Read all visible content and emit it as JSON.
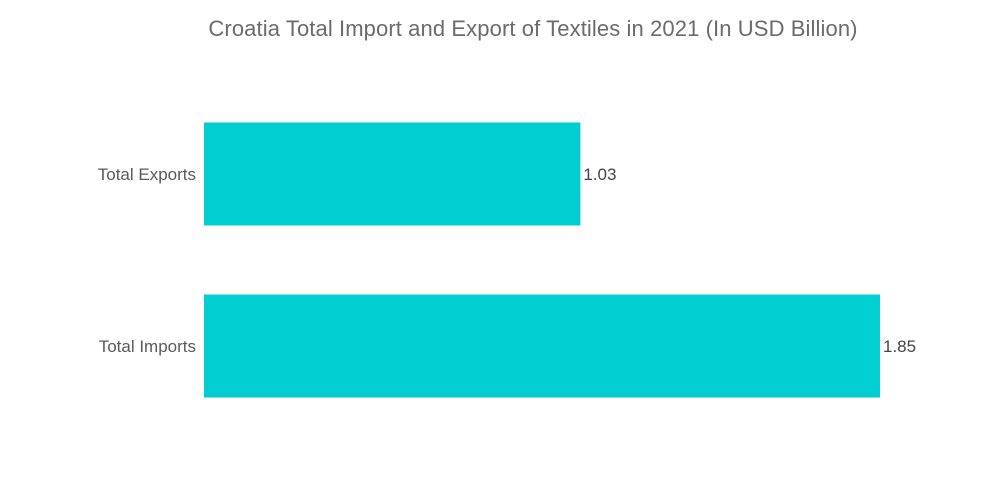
{
  "chart_data": {
    "type": "bar",
    "orientation": "horizontal",
    "title": "Croatia Total Import and Export of Textiles in 2021 (In USD Billion)",
    "categories": [
      "Total Exports",
      "Total Imports"
    ],
    "values": [
      1.03,
      1.85
    ],
    "value_labels": [
      "1.03",
      "1.85"
    ],
    "xlim": [
      0,
      1.85
    ],
    "grid": false,
    "legend": "none",
    "bar_color": "#00CED1"
  }
}
